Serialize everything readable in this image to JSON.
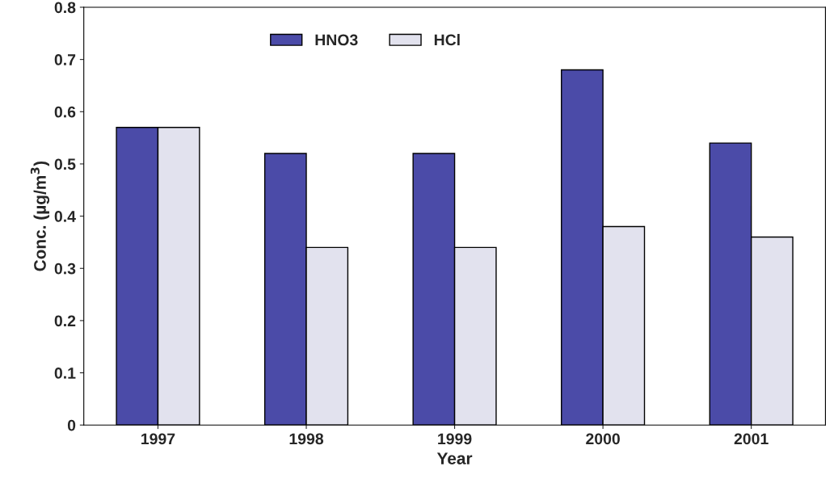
{
  "chart_data": {
    "type": "bar",
    "xlabel": "Year",
    "ylabel": "Conc. (µg/m$^{3}$)",
    "categories": [
      "1997",
      "1998",
      "1999",
      "2000",
      "2001"
    ],
    "series": [
      {
        "name": "HNO3",
        "color": "#4b4ba8",
        "values": [
          0.57,
          0.52,
          0.52,
          0.68,
          0.54
        ]
      },
      {
        "name": "HCl",
        "color": "#e2e2ee",
        "values": [
          0.57,
          0.34,
          0.34,
          0.38,
          0.36
        ]
      }
    ],
    "ylim": [
      0,
      0.8
    ],
    "yticks": [
      0,
      0.1,
      0.2,
      0.3,
      0.4,
      0.5,
      0.6,
      0.7,
      0.8
    ],
    "grid": false,
    "legend": "top"
  }
}
